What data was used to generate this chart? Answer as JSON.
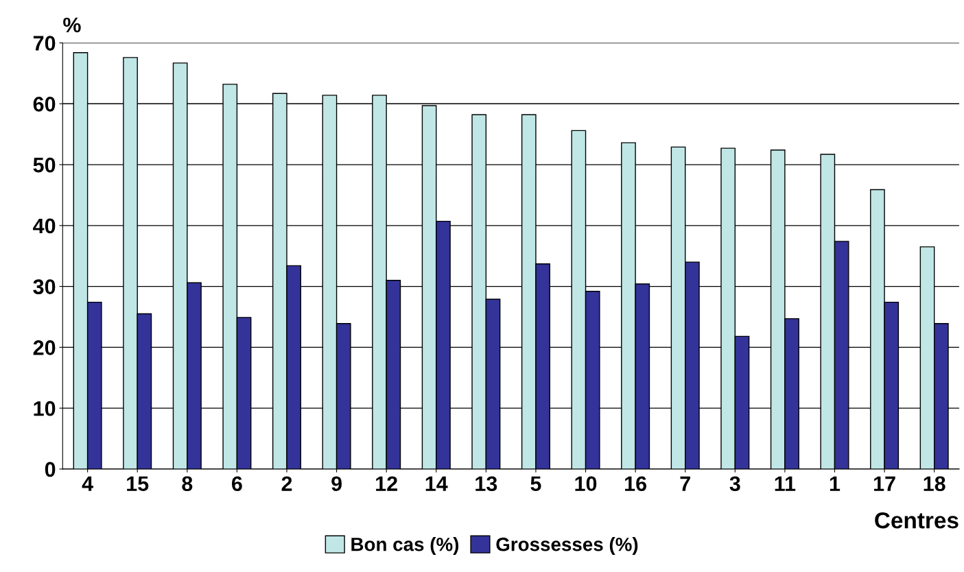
{
  "chart_data": {
    "type": "bar",
    "ylabel": "%",
    "xlabel": "Centres",
    "categories": [
      "4",
      "15",
      "8",
      "6",
      "2",
      "9",
      "12",
      "14",
      "13",
      "5",
      "10",
      "16",
      "7",
      "3",
      "11",
      "1",
      "17",
      "18"
    ],
    "series": [
      {
        "name": "Bon cas (%)",
        "color": "#c0e6e6",
        "values": [
          68.4,
          67.6,
          66.7,
          63.2,
          61.7,
          61.4,
          61.4,
          59.7,
          58.2,
          58.2,
          55.6,
          53.6,
          52.9,
          52.7,
          52.4,
          51.7,
          45.9,
          36.5
        ]
      },
      {
        "name": "Grossesses (%)",
        "color": "#333399",
        "values": [
          27.4,
          25.5,
          30.6,
          24.9,
          33.4,
          23.9,
          31.0,
          40.7,
          27.9,
          33.7,
          29.2,
          30.4,
          34.0,
          21.8,
          24.7,
          37.4,
          27.4,
          23.9
        ]
      }
    ],
    "ylim": [
      0,
      70
    ],
    "yticks": [
      0,
      10,
      20,
      30,
      40,
      50,
      60,
      70
    ],
    "grid": "y",
    "legend": "bottom"
  }
}
